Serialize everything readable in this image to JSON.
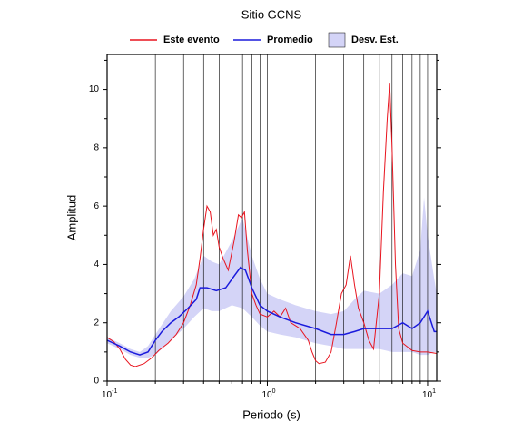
{
  "chart_data": {
    "type": "line",
    "title": "Sitio GCNS",
    "xlabel": "Periodo (s)",
    "ylabel": "Amplitud",
    "xscale": "log",
    "xlim": [
      0.1,
      11.4
    ],
    "ylim": [
      0,
      11.2
    ],
    "xticks": [
      {
        "value": 0.1,
        "label": "10",
        "exponent": "-1"
      },
      {
        "value": 1,
        "label": "10",
        "exponent": "0"
      },
      {
        "value": 10,
        "label": "10",
        "exponent": "1"
      }
    ],
    "xminor": [
      0.2,
      0.3,
      0.4,
      0.5,
      0.6,
      0.7,
      0.8,
      0.9,
      2,
      3,
      4,
      5,
      6,
      7,
      8,
      9
    ],
    "yticks": [
      0,
      2,
      4,
      6,
      8,
      10
    ],
    "yminor": [
      1,
      3,
      5,
      7,
      9,
      11
    ],
    "grid": "x",
    "legend": "top",
    "series": [
      {
        "name": "Este evento",
        "color": "#e8141e",
        "x": [
          0.1,
          0.11,
          0.12,
          0.13,
          0.14,
          0.15,
          0.17,
          0.19,
          0.21,
          0.24,
          0.27,
          0.3,
          0.33,
          0.36,
          0.38,
          0.4,
          0.42,
          0.44,
          0.46,
          0.48,
          0.5,
          0.53,
          0.57,
          0.62,
          0.66,
          0.69,
          0.72,
          0.75,
          0.8,
          0.85,
          0.9,
          1.0,
          1.1,
          1.2,
          1.3,
          1.4,
          1.5,
          1.6,
          1.8,
          1.9,
          2.0,
          2.1,
          2.3,
          2.5,
          2.7,
          2.9,
          3.1,
          3.3,
          3.5,
          3.7,
          4.0,
          4.3,
          4.6,
          5.0,
          5.3,
          5.6,
          5.8,
          6.0,
          6.3,
          6.6,
          7.0,
          8,
          9,
          10,
          11.4
        ],
        "values": [
          1.5,
          1.35,
          1.1,
          0.75,
          0.55,
          0.5,
          0.6,
          0.8,
          1.05,
          1.3,
          1.6,
          2.0,
          2.6,
          3.3,
          4.2,
          5.2,
          6.0,
          5.8,
          5.0,
          5.2,
          4.6,
          4.2,
          3.8,
          4.8,
          5.7,
          5.6,
          5.8,
          4.5,
          3.0,
          2.6,
          2.3,
          2.2,
          2.4,
          2.2,
          2.5,
          2.0,
          1.9,
          1.8,
          1.4,
          1.0,
          0.7,
          0.6,
          0.65,
          1.0,
          2.0,
          3.0,
          3.3,
          4.3,
          3.3,
          2.5,
          2.0,
          1.4,
          1.1,
          3.0,
          6.5,
          9.0,
          10.2,
          8.0,
          4.0,
          1.8,
          1.3,
          1.05,
          1.0,
          1.0,
          0.95
        ]
      },
      {
        "name": "Promedio",
        "color": "#1a1adc",
        "x": [
          0.1,
          0.12,
          0.14,
          0.16,
          0.18,
          0.2,
          0.22,
          0.25,
          0.28,
          0.32,
          0.36,
          0.38,
          0.42,
          0.48,
          0.55,
          0.62,
          0.68,
          0.73,
          0.8,
          0.9,
          1.0,
          1.2,
          1.5,
          2.0,
          2.5,
          3.0,
          3.5,
          4.0,
          5.0,
          6.0,
          7,
          8,
          9,
          10,
          11,
          11.4
        ],
        "values": [
          1.4,
          1.2,
          1.0,
          0.9,
          1.0,
          1.4,
          1.7,
          2.0,
          2.2,
          2.5,
          2.8,
          3.2,
          3.2,
          3.1,
          3.2,
          3.6,
          3.9,
          3.8,
          3.2,
          2.6,
          2.4,
          2.2,
          2.0,
          1.8,
          1.6,
          1.6,
          1.7,
          1.8,
          1.8,
          1.8,
          2.0,
          1.8,
          2.0,
          2.4,
          1.7,
          1.7
        ]
      },
      {
        "name": "Desv. Est.",
        "color": "#d4d4f7",
        "x": [
          0.1,
          0.12,
          0.14,
          0.16,
          0.18,
          0.2,
          0.25,
          0.3,
          0.35,
          0.4,
          0.45,
          0.5,
          0.6,
          0.7,
          0.8,
          0.9,
          1,
          1.2,
          1.5,
          2,
          2.5,
          3,
          3.5,
          4,
          5,
          6,
          7,
          8,
          9,
          9.5,
          10,
          11,
          11.4
        ],
        "upper": [
          1.5,
          1.3,
          1.1,
          1.0,
          1.2,
          1.6,
          2.4,
          2.9,
          3.5,
          4.3,
          4.1,
          4.0,
          4.8,
          5.6,
          4.3,
          3.5,
          3.0,
          2.8,
          2.6,
          2.4,
          2.3,
          2.4,
          2.8,
          3.1,
          3.0,
          3.3,
          3.7,
          3.6,
          4.5,
          6.3,
          5.0,
          3.5,
          3.0
        ],
        "lower": [
          1.3,
          1.1,
          0.9,
          0.8,
          0.8,
          0.9,
          1.4,
          1.8,
          2.2,
          2.5,
          2.4,
          2.4,
          2.6,
          2.5,
          2.2,
          1.9,
          1.7,
          1.6,
          1.5,
          1.3,
          1.2,
          1.1,
          1.1,
          1.1,
          1.1,
          1.0,
          1.0,
          1.0,
          0.9,
          0.9,
          0.9,
          1.0,
          1.0
        ]
      }
    ]
  }
}
